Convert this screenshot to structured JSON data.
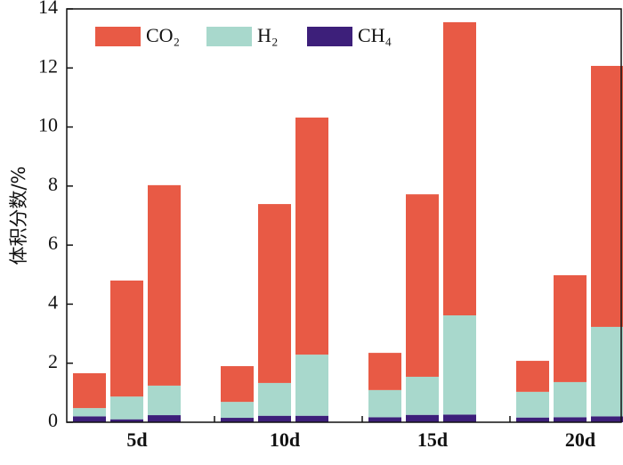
{
  "chart_data": {
    "type": "grouped-stacked-bar",
    "ylabel": "体积分数/%",
    "categories": [
      "5d",
      "10d",
      "15d",
      "20d"
    ],
    "series": [
      {
        "name": "CO₂",
        "color": "#e85a45",
        "values": [
          [
            1.18,
            3.93,
            6.79
          ],
          [
            1.21,
            6.06,
            8.03
          ],
          [
            1.26,
            6.18,
            9.93
          ],
          [
            1.05,
            3.62,
            8.84
          ]
        ]
      },
      {
        "name": "H₂",
        "color": "#a8d8cc",
        "values": [
          [
            0.28,
            0.77,
            1.0
          ],
          [
            0.54,
            1.11,
            2.07
          ],
          [
            0.92,
            1.29,
            3.36
          ],
          [
            0.87,
            1.19,
            3.03
          ]
        ]
      },
      {
        "name": "CH₄",
        "color": "#3d1f7a",
        "values": [
          [
            0.2,
            0.1,
            0.24
          ],
          [
            0.15,
            0.22,
            0.22
          ],
          [
            0.17,
            0.25,
            0.26
          ],
          [
            0.16,
            0.17,
            0.2
          ]
        ]
      }
    ],
    "ylim": [
      0,
      14
    ],
    "yticks": [
      0,
      2,
      4,
      6,
      8,
      10,
      12,
      14
    ],
    "legend": "top-left"
  }
}
